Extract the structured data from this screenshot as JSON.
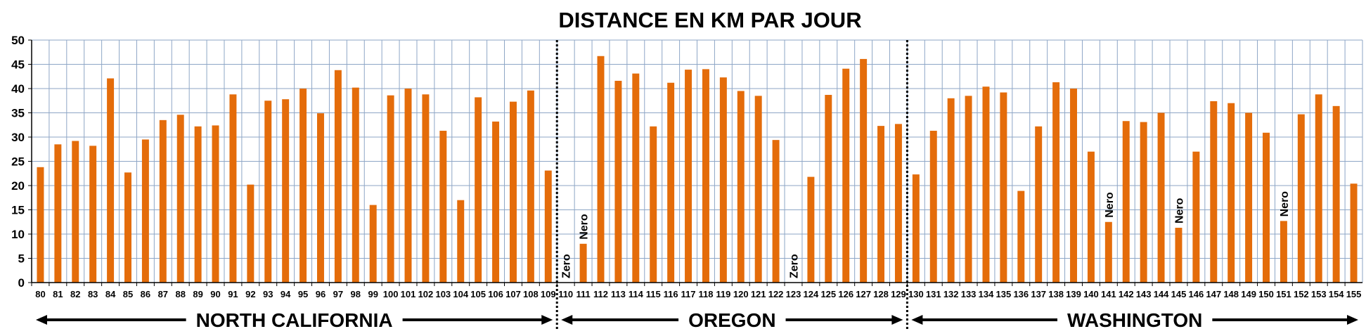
{
  "chart_data": {
    "type": "bar",
    "title": "DISTANCE EN KM PAR JOUR",
    "ylim": [
      0,
      50
    ],
    "yticks": [
      0,
      5,
      10,
      15,
      20,
      25,
      30,
      35,
      40,
      45,
      50
    ],
    "grid": true,
    "bar_color": "#e46c0a",
    "categories": [
      "80",
      "81",
      "82",
      "83",
      "84",
      "85",
      "86",
      "87",
      "88",
      "89",
      "90",
      "91",
      "92",
      "93",
      "94",
      "95",
      "96",
      "97",
      "98",
      "99",
      "100",
      "101",
      "102",
      "103",
      "104",
      "105",
      "106",
      "107",
      "108",
      "109",
      "110",
      "111",
      "112",
      "113",
      "114",
      "115",
      "116",
      "117",
      "118",
      "119",
      "120",
      "121",
      "122",
      "123",
      "124",
      "125",
      "126",
      "127",
      "128",
      "129",
      "130",
      "131",
      "132",
      "133",
      "134",
      "135",
      "136",
      "137",
      "138",
      "139",
      "140",
      "141",
      "142",
      "143",
      "144",
      "145",
      "146",
      "147",
      "148",
      "149",
      "150",
      "151",
      "152",
      "153",
      "154",
      "155"
    ],
    "values": [
      23.8,
      28.5,
      29.2,
      28.2,
      42.1,
      22.7,
      29.5,
      33.5,
      34.6,
      32.2,
      32.4,
      38.8,
      20.2,
      37.5,
      37.8,
      40.0,
      34.9,
      43.8,
      40.2,
      16.0,
      38.6,
      40.0,
      38.8,
      31.3,
      17.0,
      38.2,
      33.2,
      37.3,
      39.6,
      23.1,
      0,
      8.0,
      46.7,
      41.6,
      43.1,
      32.2,
      41.2,
      43.9,
      44.0,
      42.3,
      39.5,
      38.5,
      29.4,
      0,
      21.8,
      38.7,
      44.1,
      46.1,
      32.3,
      32.7,
      22.3,
      31.3,
      38.0,
      38.5,
      40.4,
      39.2,
      18.9,
      32.2,
      41.3,
      40.0,
      27.0,
      12.5,
      33.3,
      33.1,
      35.0,
      11.3,
      27.0,
      37.4,
      37.0,
      35.0,
      30.9,
      12.7,
      34.7,
      38.8,
      36.4,
      20.4
    ],
    "annotations": [
      {
        "category": "110",
        "text": "Zero"
      },
      {
        "category": "111",
        "text": "Nero"
      },
      {
        "category": "123",
        "text": "Zero"
      },
      {
        "category": "141",
        "text": "Nero"
      },
      {
        "category": "145",
        "text": "Nero"
      },
      {
        "category": "151",
        "text": "Nero"
      }
    ],
    "regions": [
      {
        "label": "NORTH CALIFORNIA",
        "from": "80",
        "to": "109"
      },
      {
        "label": "OREGON",
        "from": "110",
        "to": "129"
      },
      {
        "label": "WASHINGTON",
        "from": "130",
        "to": "155"
      }
    ]
  }
}
